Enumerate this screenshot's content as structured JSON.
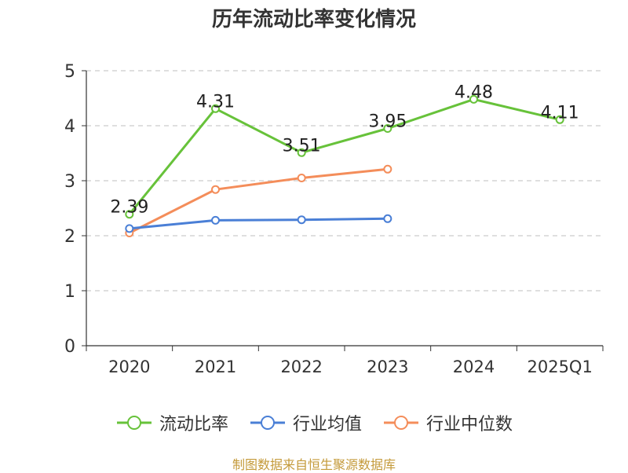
{
  "title": "历年流动比率变化情况",
  "footer": "制图数据来自恒生聚源数据库",
  "chart_data": {
    "type": "line",
    "categories": [
      "2020",
      "2021",
      "2022",
      "2023",
      "2024",
      "2025Q1"
    ],
    "ylim": [
      0,
      5
    ],
    "yticks": [
      0,
      1,
      2,
      3,
      4,
      5
    ],
    "grid": true,
    "legend_position": "bottom",
    "series": [
      {
        "name": "流动比率",
        "color": "#67c23a",
        "values": [
          2.39,
          4.31,
          3.51,
          3.95,
          4.48,
          4.11
        ],
        "labels": [
          "2.39",
          "4.31",
          "3.51",
          "3.95",
          "4.48",
          "4.11"
        ]
      },
      {
        "name": "行业均值",
        "color": "#4a7fd6",
        "values": [
          2.13,
          2.28,
          2.29,
          2.31,
          null,
          null
        ]
      },
      {
        "name": "行业中位数",
        "color": "#f48d5a",
        "values": [
          2.05,
          2.84,
          3.05,
          3.21,
          null,
          null
        ]
      }
    ]
  }
}
